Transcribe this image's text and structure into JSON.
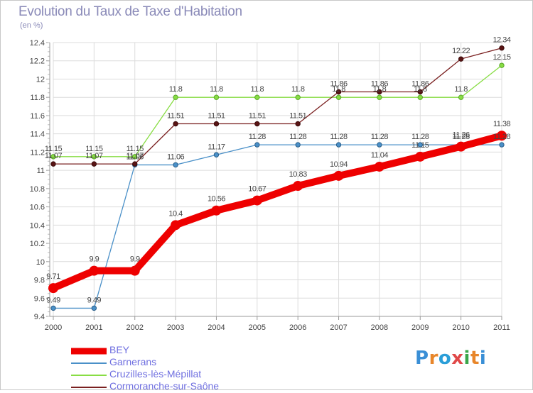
{
  "title": "Evolution du Taux de Taxe d'Habitation",
  "unit": "(en %)",
  "logo": {
    "text": "Proxiti",
    "colors": [
      "#3a8fd6",
      "#e8862a",
      "#2a9ed8",
      "#e04848",
      "#3aa64a",
      "#e8862a",
      "#3a8fd6"
    ]
  },
  "chart_data": {
    "type": "line",
    "title": "Evolution du Taux de Taxe d'Habitation",
    "ylabel": "(en %)",
    "xlabel": "",
    "categories": [
      "2000",
      "2001",
      "2002",
      "2003",
      "2004",
      "2005",
      "2006",
      "2007",
      "2008",
      "2009",
      "2010",
      "2011"
    ],
    "ylim": [
      9.4,
      12.4
    ],
    "yticks": [
      "9.4",
      "9.6",
      "9.8",
      "10",
      "10.2",
      "10.4",
      "10.6",
      "10.8",
      "11",
      "11.2",
      "11.4",
      "11.6",
      "11.8",
      "12",
      "12.2",
      "12.4"
    ],
    "legend_position": "bottom-left",
    "series": [
      {
        "name": "BEY",
        "color": "#ee0000",
        "values": [
          9.71,
          9.9,
          9.9,
          10.4,
          10.56,
          10.67,
          10.83,
          10.94,
          11.04,
          11.15,
          11.26,
          11.38
        ],
        "labels": [
          "9.71",
          "9.9",
          "9.9",
          "10.4",
          "10.56",
          "10.67",
          "10.83",
          "10.94",
          "11.04",
          "11.15",
          "11.26",
          "11.38"
        ]
      },
      {
        "name": "Garnerans",
        "color": "#4a90c8",
        "values": [
          9.49,
          9.49,
          11.06,
          11.06,
          11.17,
          11.28,
          11.28,
          11.28,
          11.28,
          11.28,
          11.28,
          11.28
        ],
        "labels": [
          "9.49",
          "9.49",
          "11.06",
          "11.06",
          "11.17",
          "11.28",
          "11.28",
          "11.28",
          "11.28",
          "11.28",
          "11.28",
          "11.28"
        ]
      },
      {
        "name": "Cruzilles-lès-Mépillat",
        "color": "#88dd44",
        "values": [
          11.15,
          11.15,
          11.15,
          11.8,
          11.8,
          11.8,
          11.8,
          11.8,
          11.8,
          11.8,
          11.8,
          12.15
        ],
        "labels": [
          "11.15",
          "11.15",
          "11.15",
          "11.8",
          "11.8",
          "11.8",
          "11.8",
          "11.8",
          "11.8",
          "11.8",
          "11.8",
          "12.15"
        ]
      },
      {
        "name": "Cormoranche-sur-Saône",
        "color": "#7a2020",
        "values": [
          11.07,
          11.07,
          11.07,
          11.51,
          11.51,
          11.51,
          11.51,
          11.86,
          11.86,
          11.86,
          12.22,
          12.34
        ],
        "labels": [
          "11.07",
          "11.07",
          "11.07",
          "11.51",
          "11.51",
          "11.51",
          "11.51",
          "11.86",
          "11.86",
          "11.86",
          "12.22",
          "12.34"
        ]
      }
    ]
  }
}
